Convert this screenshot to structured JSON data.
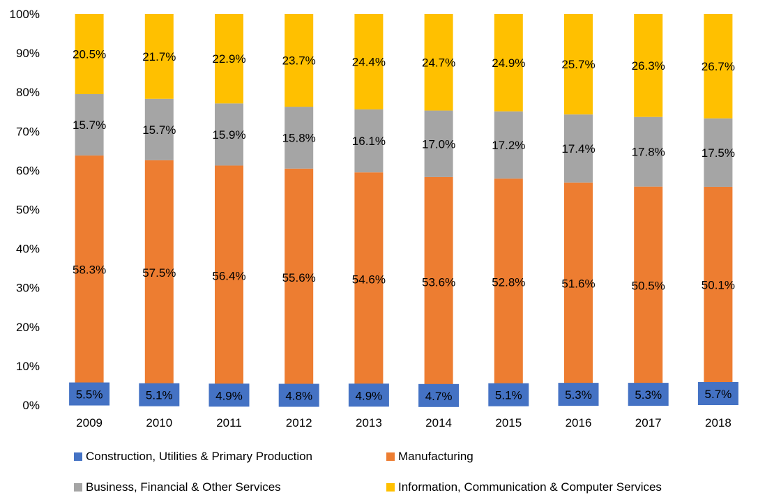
{
  "chart_data": {
    "type": "bar",
    "stacked": true,
    "percent": true,
    "title": "",
    "xlabel": "",
    "ylabel": "",
    "ylim": [
      0,
      100
    ],
    "y_ticks": [
      "0%",
      "10%",
      "20%",
      "30%",
      "40%",
      "50%",
      "60%",
      "70%",
      "80%",
      "90%",
      "100%"
    ],
    "grid": false,
    "legend_position": "bottom",
    "categories": [
      "2009",
      "2010",
      "2011",
      "2012",
      "2013",
      "2014",
      "2015",
      "2016",
      "2017",
      "2018"
    ],
    "series": [
      {
        "name": "Construction, Utilities & Primary Production",
        "color": "#4472C4",
        "values": [
          5.5,
          5.1,
          4.9,
          4.8,
          4.9,
          4.7,
          5.1,
          5.3,
          5.3,
          5.7
        ],
        "labels": [
          "5.5%",
          "5.1%",
          "4.9%",
          "4.8%",
          "4.9%",
          "4.7%",
          "5.1%",
          "5.3%",
          "5.3%",
          "5.7%"
        ]
      },
      {
        "name": "Manufacturing",
        "color": "#ED7D31",
        "values": [
          58.3,
          57.5,
          56.4,
          55.6,
          54.6,
          53.6,
          52.8,
          51.6,
          50.5,
          50.1
        ],
        "labels": [
          "58.3%",
          "57.5%",
          "56.4%",
          "55.6%",
          "54.6%",
          "53.6%",
          "52.8%",
          "51.6%",
          "50.5%",
          "50.1%"
        ]
      },
      {
        "name": "Business, Financial & Other Services",
        "color": "#A5A5A5",
        "values": [
          15.7,
          15.7,
          15.9,
          15.8,
          16.1,
          17.0,
          17.2,
          17.4,
          17.8,
          17.5
        ],
        "labels": [
          "15.7%",
          "15.7%",
          "15.9%",
          "15.8%",
          "16.1%",
          "17.0%",
          "17.2%",
          "17.4%",
          "17.8%",
          "17.5%"
        ]
      },
      {
        "name": "Information, Communication & Computer Services",
        "color": "#FFC000",
        "values": [
          20.5,
          21.7,
          22.9,
          23.7,
          24.4,
          24.7,
          24.9,
          25.7,
          26.3,
          26.7
        ],
        "labels": [
          "20.5%",
          "21.7%",
          "22.9%",
          "23.7%",
          "24.4%",
          "24.7%",
          "24.9%",
          "25.7%",
          "26.3%",
          "26.7%"
        ]
      }
    ]
  }
}
